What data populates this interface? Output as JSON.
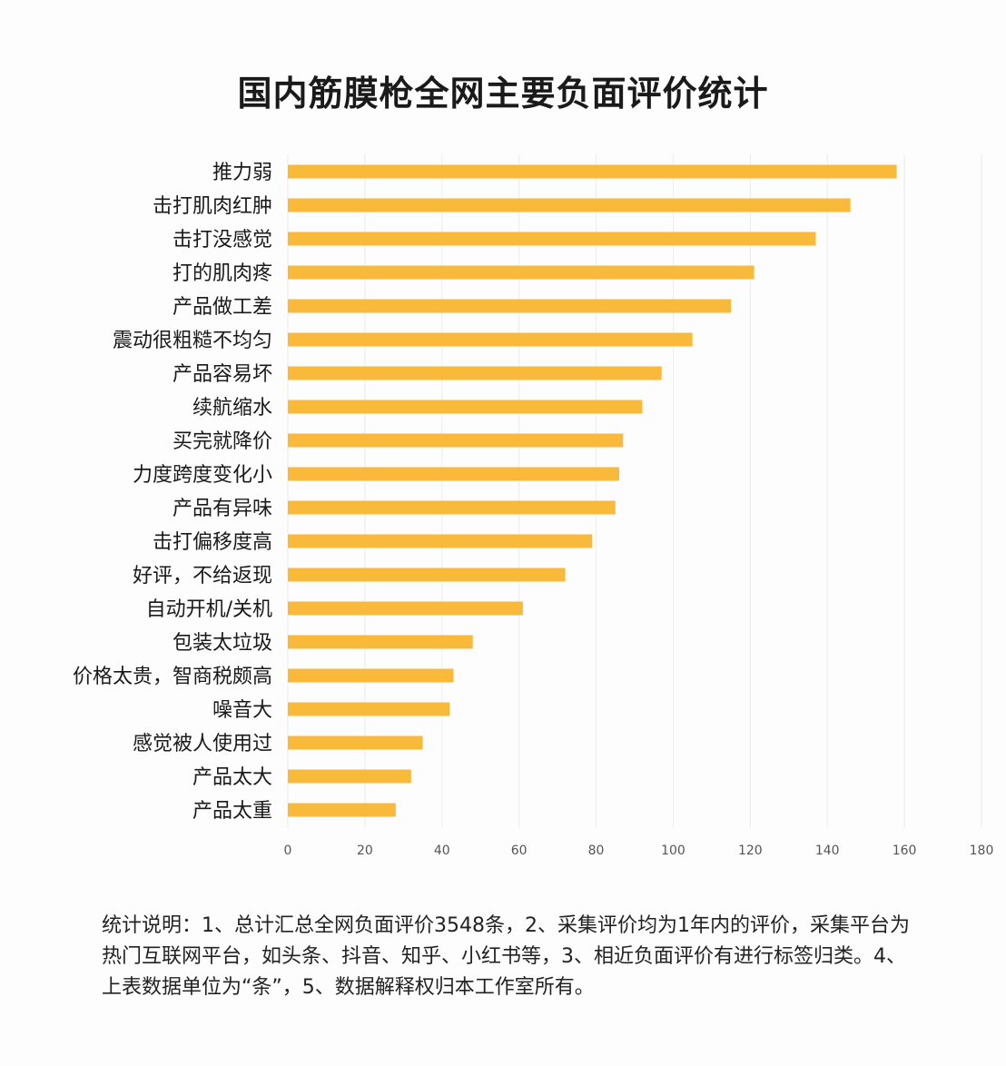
{
  "chart_data": {
    "type": "bar",
    "orientation": "horizontal",
    "title": "国内筋膜枪全网主要负面评价统计",
    "categories": [
      "推力弱",
      "击打肌肉红肿",
      "击打没感觉",
      "打的肌肉疼",
      "产品做工差",
      "震动很粗糙不均匀",
      "产品容易坏",
      "续航缩水",
      "买完就降价",
      "力度跨度变化小",
      "产品有异味",
      "击打偏移度高",
      "好评，不给返现",
      "自动开机/关机",
      "包装太垃圾",
      "价格太贵，智商税颇高",
      "噪音大",
      "感觉被人使用过",
      "产品太大",
      "产品太重"
    ],
    "values": [
      158,
      146,
      137,
      121,
      115,
      105,
      97,
      92,
      87,
      86,
      85,
      79,
      72,
      61,
      48,
      43,
      42,
      35,
      32,
      28
    ],
    "xlim": [
      0,
      180
    ],
    "xticks": [
      "0",
      "20",
      "40",
      "60",
      "80",
      "100",
      "120",
      "140",
      "160",
      "180"
    ],
    "xlabel": "",
    "ylabel": "",
    "grid": "vertical",
    "bar_color": "#F9B93A"
  },
  "footnote": "统计说明：1、总计汇总全网负面评价3548条，2、采集评价均为1年内的评价，采集平台为热门互联网平台，如头条、抖音、知乎、小红书等，3、相近负面评价有进行标签归类。4、上表数据单位为“条”，5、数据解释权归本工作室所有。"
}
